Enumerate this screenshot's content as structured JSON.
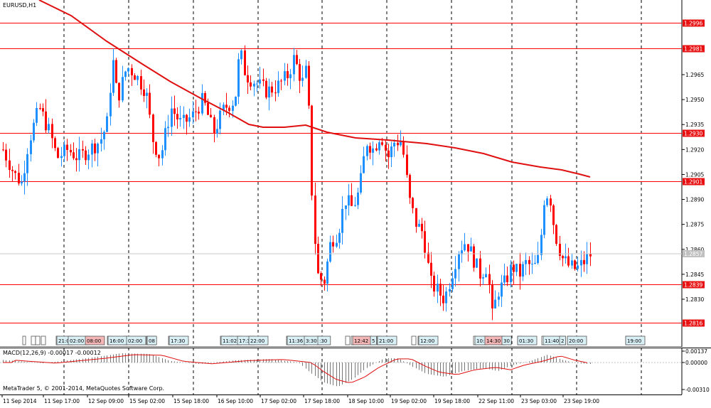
{
  "window": {
    "symbol": "EURUSD,H1",
    "copyright": "MetaTrader 5, © 2001-2014, MetaQuotes Software Corp."
  },
  "colors": {
    "background": "#ffffff",
    "bull_candle": "#1e90ff",
    "bear_candle": "#ff0000",
    "hline": "#ff0000",
    "ma": "#e01010",
    "grid": "#000000",
    "tag_red": "#e81010"
  },
  "price_axis": {
    "labels": [
      "1.2965",
      "1.2950",
      "1.2935",
      "1.2920",
      "1.2905",
      "1.2890",
      "1.2875",
      "1.2860",
      "1.2845",
      "1.2830"
    ],
    "current_price": "1.2857"
  },
  "horizontal_levels": [
    {
      "price": "1.2996"
    },
    {
      "price": "1.2981"
    },
    {
      "price": "1.2930"
    },
    {
      "price": "1.2901"
    },
    {
      "price": "1.2839"
    },
    {
      "price": "1.2816"
    }
  ],
  "macd": {
    "label": "MACD(12,26,9) -0.00017 -0.00012",
    "axis_labels": [
      "0.00137",
      "0.00000",
      "-0.00310"
    ]
  },
  "time_axis": {
    "labels": [
      "11 Sep 2014",
      "11 Sep 17:00",
      "12 Sep 09:00",
      "15 Sep 02:00",
      "15 Sep 18:00",
      "16 Sep 10:00",
      "17 Sep 02:00",
      "17 Sep 18:00",
      "18 Sep 10:00",
      "19 Sep 02:00",
      "19 Sep 18:00",
      "22 Sep 11:00",
      "23 Sep 03:00",
      "23 Sep 19:00"
    ]
  },
  "time_tags": [
    {
      "text": "21:0"
    },
    {
      "text": "02:00"
    },
    {
      "text": "08:00"
    },
    {
      "text": "16:00"
    },
    {
      "text": "02:00"
    },
    {
      "text": "08"
    },
    {
      "text": "17:30"
    },
    {
      "text": "11:02"
    },
    {
      "text": "17:3"
    },
    {
      "text": "22:00"
    },
    {
      "text": "11:36"
    },
    {
      "text": "3:30"
    },
    {
      "text": ":30"
    },
    {
      "text": "12:42"
    },
    {
      "text": "5"
    },
    {
      "text": "21:00"
    },
    {
      "text": "12:00"
    },
    {
      "text": "10:"
    },
    {
      "text": "14:30"
    },
    {
      "text": "30"
    },
    {
      "text": "01:30"
    },
    {
      "text": "11:40"
    },
    {
      "text": "2"
    },
    {
      "text": "20:00"
    },
    {
      "text": "19:00"
    }
  ]
}
